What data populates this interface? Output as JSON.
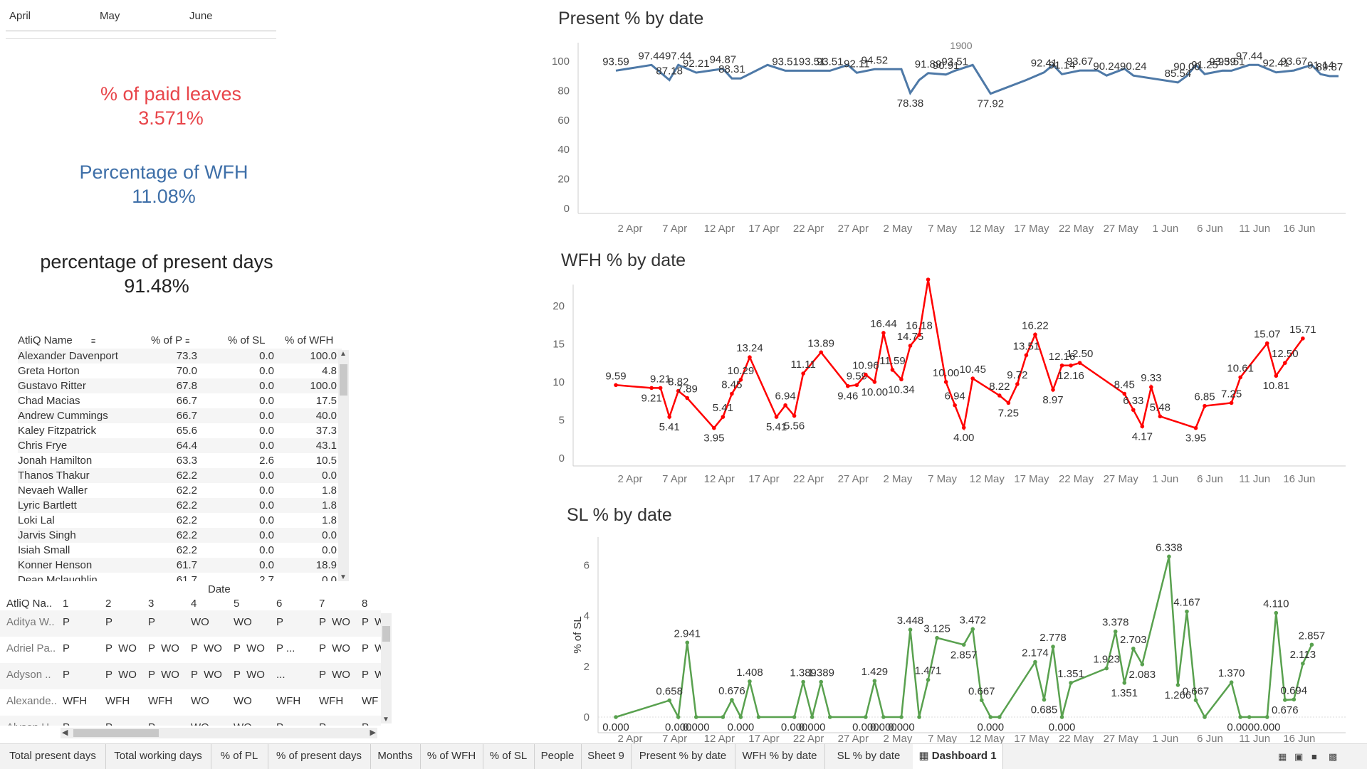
{
  "months": [
    "April",
    "May",
    "June"
  ],
  "kpis": {
    "paid_leaves_label": "% of paid leaves",
    "paid_leaves_value": "3.571%",
    "wfh_label": "Percentage of WFH",
    "wfh_value": "11.08%",
    "present_label": "percentage of present days",
    "present_value": "91.48%",
    "colors": {
      "paid_leaves": "#e8454a",
      "wfh": "#3e6fa8",
      "present": "#222222"
    }
  },
  "people_table": {
    "headers": [
      "AtliQ Name",
      "% of P",
      "% of SL",
      "% of WFH"
    ],
    "rows": [
      [
        "Alexander Davenport",
        "73.3",
        "0.0",
        "100.0"
      ],
      [
        "Greta Horton",
        "70.0",
        "0.0",
        "4.8"
      ],
      [
        "Gustavo Ritter",
        "67.8",
        "0.0",
        "100.0"
      ],
      [
        "Chad Macias",
        "66.7",
        "0.0",
        "17.5"
      ],
      [
        "Andrew Cummings",
        "66.7",
        "0.0",
        "40.0"
      ],
      [
        "Kaley Fitzpatrick",
        "65.6",
        "0.0",
        "37.3"
      ],
      [
        "Chris Frye",
        "64.4",
        "0.0",
        "43.1"
      ],
      [
        "Jonah Hamilton",
        "63.3",
        "2.6",
        "10.5"
      ],
      [
        "Thanos Thakur",
        "62.2",
        "0.0",
        "0.0"
      ],
      [
        "Nevaeh Waller",
        "62.2",
        "0.0",
        "1.8"
      ],
      [
        "Lyric Bartlett",
        "62.2",
        "0.0",
        "1.8"
      ],
      [
        "Loki Lal",
        "62.2",
        "0.0",
        "1.8"
      ],
      [
        "Jarvis Singh",
        "62.2",
        "0.0",
        "0.0"
      ],
      [
        "Isiah Small",
        "62.2",
        "0.0",
        "0.0"
      ],
      [
        "Konner Henson",
        "61.7",
        "0.0",
        "18.9"
      ],
      [
        "Dean Mclaughlin",
        "61.7",
        "2.7",
        "0.0"
      ]
    ]
  },
  "date_grid": {
    "title": "Date",
    "row_header": "AtliQ Na..",
    "columns": [
      "1",
      "2",
      "3",
      "4",
      "5",
      "6",
      "7",
      "8"
    ],
    "rows": [
      {
        "name": "Aditya W..",
        "cells": [
          "P",
          "P",
          "P",
          "WO",
          "WO",
          "P",
          "P  WO",
          "P  W"
        ]
      },
      {
        "name": "Adriel Pa..",
        "cells": [
          "P",
          "P  WO",
          "P  WO",
          "P  WO",
          "P  WO",
          "P ...",
          "P  WO",
          "P  W"
        ]
      },
      {
        "name": "Adyson ..",
        "cells": [
          "P",
          "P  WO",
          "P  WO",
          "P  WO",
          "P  WO",
          "...",
          "P  WO",
          "P  W"
        ]
      },
      {
        "name": "Alexande..",
        "cells": [
          "WFH",
          "WFH",
          "WFH",
          "WO",
          "WO",
          "WFH",
          "WFH",
          "WF"
        ]
      },
      {
        "name": "Alyson H..",
        "cells": [
          "P",
          "P",
          "P",
          "WO",
          "WO",
          "P",
          "P",
          "P"
        ]
      }
    ]
  },
  "chart_data": [
    {
      "type": "line",
      "title": "Present % by date",
      "color": "#4e79a7",
      "ylim": [
        0,
        100
      ],
      "yticks": [
        0,
        20,
        40,
        60,
        80,
        100
      ],
      "xticks": [
        "2 Apr",
        "7 Apr",
        "12 Apr",
        "17 Apr",
        "22 Apr",
        "27 Apr",
        "2 May",
        "7 May",
        "12 May",
        "17 May",
        "22 May",
        "27 May",
        "1 Jun",
        "6 Jun",
        "11 Jun",
        "16 Jun"
      ],
      "annotations": [
        "1900"
      ],
      "points": [
        {
          "d": 0,
          "v": 93.59,
          "l": "93.59"
        },
        {
          "d": 4,
          "v": 97.44,
          "l": "97.44"
        },
        {
          "d": 6,
          "v": 87.18,
          "l": "87.18"
        },
        {
          "d": 7,
          "v": 97.44,
          "l": "97.44"
        },
        {
          "d": 9,
          "v": 92.21,
          "l": "92.21"
        },
        {
          "d": 12,
          "v": 94.87,
          "l": "94.87"
        },
        {
          "d": 13,
          "v": 88.31,
          "l": "88.31"
        },
        {
          "d": 14,
          "v": 88.31
        },
        {
          "d": 17,
          "v": 97.44
        },
        {
          "d": 19,
          "v": 93.51,
          "l": "93.51"
        },
        {
          "d": 21,
          "v": 93.51
        },
        {
          "d": 22,
          "v": 93.51,
          "l": "93.51"
        },
        {
          "d": 24,
          "v": 93.51,
          "l": "93.51"
        },
        {
          "d": 26,
          "v": 97.44
        },
        {
          "d": 27,
          "v": 92.11,
          "l": "92.11"
        },
        {
          "d": 29,
          "v": 94.52,
          "l": "94.52"
        },
        {
          "d": 32,
          "v": 94.52
        },
        {
          "d": 33,
          "v": 78.38,
          "l": "78.38"
        },
        {
          "d": 34,
          "v": 87.18
        },
        {
          "d": 35,
          "v": 91.89,
          "l": "91.89"
        },
        {
          "d": 37,
          "v": 90.91,
          "l": "90.91"
        },
        {
          "d": 38,
          "v": 93.51,
          "l": "93.51"
        },
        {
          "d": 40,
          "v": 97.44
        },
        {
          "d": 42,
          "v": 77.92,
          "l": "77.92"
        },
        {
          "d": 46,
          "v": 87.18
        },
        {
          "d": 48,
          "v": 92.41,
          "l": "92.41"
        },
        {
          "d": 49,
          "v": 97.44
        },
        {
          "d": 50,
          "v": 91.14,
          "l": "91.14"
        },
        {
          "d": 52,
          "v": 93.67,
          "l": "93.67"
        },
        {
          "d": 54,
          "v": 93.67
        },
        {
          "d": 55,
          "v": 90.24,
          "l": "90.24"
        },
        {
          "d": 57,
          "v": 94.87
        },
        {
          "d": 58,
          "v": 90.24,
          "l": "90.24"
        },
        {
          "d": 63,
          "v": 85.54,
          "l": "85.54"
        },
        {
          "d": 64,
          "v": 90.0,
          "l": "90.00"
        },
        {
          "d": 65,
          "v": 97.44
        },
        {
          "d": 66,
          "v": 91.25,
          "l": "91.25"
        },
        {
          "d": 68,
          "v": 93.59,
          "l": "93.59"
        },
        {
          "d": 69,
          "v": 93.51,
          "l": "93.51"
        },
        {
          "d": 71,
          "v": 97.44,
          "l": "97.44"
        },
        {
          "d": 72,
          "v": 97.44
        },
        {
          "d": 74,
          "v": 92.41,
          "l": "92.41"
        },
        {
          "d": 76,
          "v": 93.67,
          "l": "93.67"
        },
        {
          "d": 78,
          "v": 97.44
        },
        {
          "d": 79,
          "v": 91.14,
          "l": "91.14"
        },
        {
          "d": 80,
          "v": 89.87,
          "l": "89.87"
        },
        {
          "d": 81,
          "v": 89.87
        }
      ]
    },
    {
      "type": "line",
      "title": "WFH % by date",
      "color": "#ff0000",
      "ylim": [
        0,
        24
      ],
      "yticks": [
        0,
        5,
        10,
        15,
        20
      ],
      "xticks": [
        "2 Apr",
        "7 Apr",
        "12 Apr",
        "17 Apr",
        "22 Apr",
        "27 Apr",
        "2 May",
        "7 May",
        "12 May",
        "17 May",
        "22 May",
        "27 May",
        "1 Jun",
        "6 Jun",
        "11 Jun",
        "16 Jun"
      ],
      "points": [
        {
          "d": 0,
          "v": 9.59,
          "l": "9.59"
        },
        {
          "d": 4,
          "v": 9.21,
          "l": "9.21"
        },
        {
          "d": 5,
          "v": 9.21,
          "l": "9.21"
        },
        {
          "d": 6,
          "v": 5.41,
          "l": "5.41"
        },
        {
          "d": 7,
          "v": 8.82,
          "l": "8.82"
        },
        {
          "d": 8,
          "v": 7.89,
          "l": "7.89"
        },
        {
          "d": 11,
          "v": 3.95,
          "l": "3.95"
        },
        {
          "d": 12,
          "v": 5.41,
          "l": "5.41"
        },
        {
          "d": 13,
          "v": 8.45,
          "l": "8.45"
        },
        {
          "d": 14,
          "v": 10.29,
          "l": "10.29"
        },
        {
          "d": 15,
          "v": 13.24,
          "l": "13.24"
        },
        {
          "d": 18,
          "v": 5.41,
          "l": "5.41"
        },
        {
          "d": 19,
          "v": 6.94,
          "l": "6.94"
        },
        {
          "d": 20,
          "v": 5.56,
          "l": "5.56"
        },
        {
          "d": 21,
          "v": 11.11,
          "l": "11.11"
        },
        {
          "d": 23,
          "v": 13.89,
          "l": "13.89"
        },
        {
          "d": 26,
          "v": 9.46,
          "l": "9.46"
        },
        {
          "d": 27,
          "v": 9.59,
          "l": "9.59"
        },
        {
          "d": 28,
          "v": 10.96,
          "l": "10.96"
        },
        {
          "d": 29,
          "v": 10.0,
          "l": "10.00"
        },
        {
          "d": 30,
          "v": 16.44,
          "l": "16.44"
        },
        {
          "d": 31,
          "v": 11.59,
          "l": "11.59"
        },
        {
          "d": 32,
          "v": 10.34,
          "l": "10.34"
        },
        {
          "d": 33,
          "v": 14.75,
          "l": "14.75"
        },
        {
          "d": 34,
          "v": 16.18,
          "l": "16.18"
        },
        {
          "d": 35,
          "v": 23.44,
          "l": "23.44"
        },
        {
          "d": 37,
          "v": 10.0,
          "l": "10.00"
        },
        {
          "d": 38,
          "v": 6.94,
          "l": "6.94"
        },
        {
          "d": 39,
          "v": 4.0,
          "l": "4.00"
        },
        {
          "d": 40,
          "v": 10.45,
          "l": "10.45"
        },
        {
          "d": 43,
          "v": 8.22,
          "l": "8.22"
        },
        {
          "d": 44,
          "v": 7.25,
          "l": "7.25"
        },
        {
          "d": 45,
          "v": 9.72,
          "l": "9.72"
        },
        {
          "d": 46,
          "v": 13.51,
          "l": "13.51"
        },
        {
          "d": 47,
          "v": 16.22,
          "l": "16.22"
        },
        {
          "d": 49,
          "v": 8.97,
          "l": "8.97"
        },
        {
          "d": 50,
          "v": 12.16,
          "l": "12.16"
        },
        {
          "d": 51,
          "v": 12.16,
          "l": "12.16"
        },
        {
          "d": 52,
          "v": 12.5,
          "l": "12.50"
        },
        {
          "d": 57,
          "v": 8.45,
          "l": "8.45"
        },
        {
          "d": 58,
          "v": 6.33,
          "l": "6.33"
        },
        {
          "d": 59,
          "v": 4.17,
          "l": "4.17"
        },
        {
          "d": 60,
          "v": 9.33,
          "l": "9.33"
        },
        {
          "d": 61,
          "v": 5.48,
          "l": "5.48"
        },
        {
          "d": 65,
          "v": 3.95,
          "l": "3.95"
        },
        {
          "d": 66,
          "v": 6.85,
          "l": "6.85"
        },
        {
          "d": 69,
          "v": 7.25,
          "l": "7.25"
        },
        {
          "d": 70,
          "v": 10.61,
          "l": "10.61"
        },
        {
          "d": 73,
          "v": 15.07,
          "l": "15.07"
        },
        {
          "d": 74,
          "v": 10.81,
          "l": "10.81"
        },
        {
          "d": 75,
          "v": 12.5,
          "l": "12.50"
        },
        {
          "d": 77,
          "v": 15.71,
          "l": "15.71"
        }
      ]
    },
    {
      "type": "line",
      "title": "SL % by date",
      "ylabel": "% of SL",
      "color": "#59a14f",
      "ylim": [
        0,
        6.6
      ],
      "yticks": [
        0,
        2,
        4,
        6
      ],
      "xticks": [
        "2 Apr",
        "7 Apr",
        "12 Apr",
        "17 Apr",
        "22 Apr",
        "27 Apr",
        "2 May",
        "7 May",
        "12 May",
        "17 May",
        "22 May",
        "27 May",
        "1 Jun",
        "6 Jun",
        "11 Jun",
        "16 Jun"
      ],
      "points": [
        {
          "d": 0,
          "v": 0.0,
          "l": "0.000"
        },
        {
          "d": 6,
          "v": 0.658,
          "l": "0.658"
        },
        {
          "d": 7,
          "v": 0.0,
          "l": "0.000"
        },
        {
          "d": 8,
          "v": 2.941,
          "l": "2.941"
        },
        {
          "d": 9,
          "v": 0.0,
          "l": "0.000"
        },
        {
          "d": 12,
          "v": 0.0
        },
        {
          "d": 13,
          "v": 0.676,
          "l": "0.676"
        },
        {
          "d": 14,
          "v": 0.0,
          "l": "0.000"
        },
        {
          "d": 15,
          "v": 1.408,
          "l": "1.408"
        },
        {
          "d": 16,
          "v": 0.0
        },
        {
          "d": 20,
          "v": 0.0,
          "l": "0.000"
        },
        {
          "d": 21,
          "v": 1.389,
          "l": "1.389"
        },
        {
          "d": 22,
          "v": 0.0,
          "l": "0.000"
        },
        {
          "d": 23,
          "v": 1.389,
          "l": "1.389"
        },
        {
          "d": 24,
          "v": 0.0
        },
        {
          "d": 28,
          "v": 0.0,
          "l": "0.000"
        },
        {
          "d": 29,
          "v": 1.429,
          "l": "1.429"
        },
        {
          "d": 30,
          "v": 0.0,
          "l": "0.000"
        },
        {
          "d": 32,
          "v": 0.0,
          "l": "0.000"
        },
        {
          "d": 33,
          "v": 3.448,
          "l": "3.448"
        },
        {
          "d": 34,
          "v": 0.0
        },
        {
          "d": 35,
          "v": 1.471,
          "l": "1.471"
        },
        {
          "d": 36,
          "v": 3.125,
          "l": "3.125"
        },
        {
          "d": 39,
          "v": 2.857,
          "l": "2.857"
        },
        {
          "d": 40,
          "v": 3.472,
          "l": "3.472"
        },
        {
          "d": 41,
          "v": 0.667,
          "l": "0.667"
        },
        {
          "d": 42,
          "v": 0.0,
          "l": "0.000"
        },
        {
          "d": 43,
          "v": 0.0
        },
        {
          "d": 47,
          "v": 2.174,
          "l": "2.174"
        },
        {
          "d": 48,
          "v": 0.685,
          "l": "0.685"
        },
        {
          "d": 49,
          "v": 2.778,
          "l": "2.778"
        },
        {
          "d": 50,
          "v": 0.0,
          "l": "0.000"
        },
        {
          "d": 51,
          "v": 1.351,
          "l": "1.351"
        },
        {
          "d": 55,
          "v": 1.923,
          "l": "1.923"
        },
        {
          "d": 56,
          "v": 3.378,
          "l": "3.378"
        },
        {
          "d": 57,
          "v": 1.351,
          "l": "1.351"
        },
        {
          "d": 58,
          "v": 2.703,
          "l": "2.703"
        },
        {
          "d": 59,
          "v": 2.083,
          "l": "2.083"
        },
        {
          "d": 62,
          "v": 6.338,
          "l": "6.338"
        },
        {
          "d": 63,
          "v": 1.266,
          "l": "1.266"
        },
        {
          "d": 64,
          "v": 4.167,
          "l": "4.167"
        },
        {
          "d": 65,
          "v": 0.667,
          "l": "0.667"
        },
        {
          "d": 66,
          "v": 0.0
        },
        {
          "d": 69,
          "v": 1.37,
          "l": "1.370"
        },
        {
          "d": 70,
          "v": 0.0,
          "l": "0.000"
        },
        {
          "d": 71,
          "v": 0.0
        },
        {
          "d": 73,
          "v": 0.0,
          "l": "0.000"
        },
        {
          "d": 74,
          "v": 4.11,
          "l": "4.110"
        },
        {
          "d": 75,
          "v": 0.676,
          "l": "0.676"
        },
        {
          "d": 76,
          "v": 0.694,
          "l": "0.694"
        },
        {
          "d": 77,
          "v": 2.113,
          "l": "2.113"
        },
        {
          "d": 78,
          "v": 2.857,
          "l": "2.857"
        }
      ]
    }
  ],
  "tabs": [
    "Total present days",
    "Total working days",
    "% of PL",
    "% of present days",
    "Months",
    "% of WFH",
    "% of SL",
    "People",
    "Sheet 9",
    "Present % by date",
    "WFH % by date",
    "SL % by date",
    "Dashboard 1"
  ],
  "active_tab": "Dashboard 1",
  "icons": {
    "new_dashboard": "grid-icon",
    "filmstrip": "filmstrip-icon",
    "sheet_sorter": "square-icon",
    "sheet_grid": "tiles-icon"
  }
}
